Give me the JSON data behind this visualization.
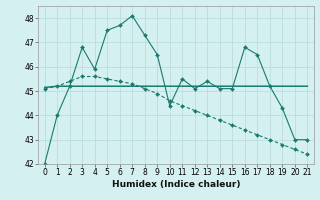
{
  "x": [
    0,
    1,
    2,
    3,
    4,
    5,
    6,
    7,
    8,
    9,
    10,
    11,
    12,
    13,
    14,
    15,
    16,
    17,
    18,
    19,
    20,
    21
  ],
  "line1": [
    42,
    44,
    45.2,
    46.8,
    45.9,
    47.5,
    47.7,
    48.1,
    47.3,
    46.5,
    44.4,
    45.5,
    45.1,
    45.4,
    45.1,
    45.1,
    46.8,
    46.5,
    45.2,
    44.3,
    43.0,
    43.0
  ],
  "line2": [
    45.15,
    45.2,
    45.2,
    45.2,
    45.2,
    45.2,
    45.2,
    45.2,
    45.2,
    45.2,
    45.2,
    45.2,
    45.2,
    45.2,
    45.2,
    45.2,
    45.2,
    45.2,
    45.2,
    45.2,
    45.2,
    45.2
  ],
  "line3": [
    45.1,
    45.2,
    45.4,
    45.6,
    45.6,
    45.5,
    45.4,
    45.3,
    45.1,
    44.9,
    44.6,
    44.4,
    44.2,
    44.0,
    43.8,
    43.6,
    43.4,
    43.2,
    43.0,
    42.8,
    42.6,
    42.4
  ],
  "ylim": [
    42,
    48.5
  ],
  "xlim": [
    -0.5,
    21.5
  ],
  "yticks": [
    42,
    43,
    44,
    45,
    46,
    47,
    48
  ],
  "xticks": [
    0,
    1,
    2,
    3,
    4,
    5,
    6,
    7,
    8,
    9,
    10,
    11,
    12,
    13,
    14,
    15,
    16,
    17,
    18,
    19,
    20,
    21
  ],
  "xlabel": "Humidex (Indice chaleur)",
  "line_color": "#1a7a6e",
  "bg_color": "#d4f0f0",
  "grid_color": "#b8dada"
}
